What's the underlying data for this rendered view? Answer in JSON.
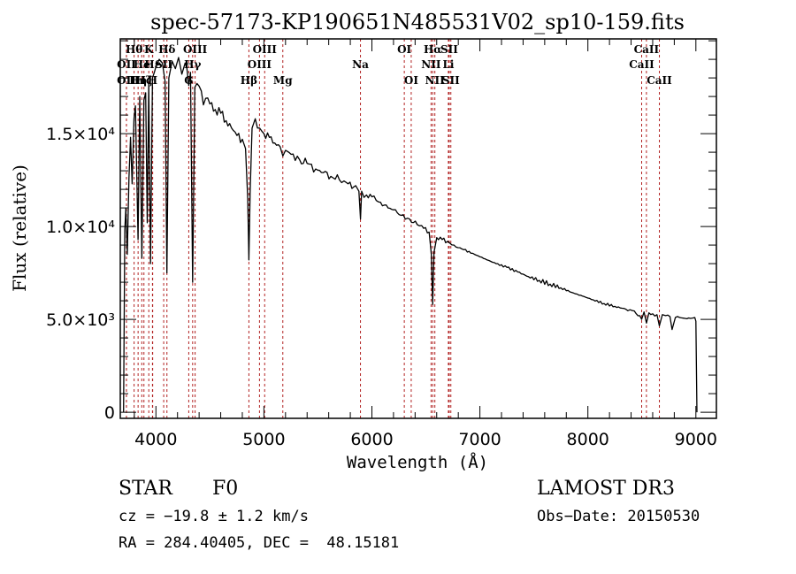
{
  "chart_data": {
    "type": "line",
    "title": "spec-57173-KP190651N485531V02_sp10-159.fits",
    "xlabel": "Wavelength (Å)",
    "ylabel": "Flux (relative)",
    "xlim": [
      3670,
      9190
    ],
    "ylim": [
      -330,
      20100
    ],
    "x_ticks": [
      {
        "value": 4000,
        "label": "4000"
      },
      {
        "value": 5000,
        "label": "5000"
      },
      {
        "value": 6000,
        "label": "6000"
      },
      {
        "value": 7000,
        "label": "7000"
      },
      {
        "value": 8000,
        "label": "8000"
      },
      {
        "value": 9000,
        "label": "9000"
      }
    ],
    "x_minor_step": 200,
    "y_ticks": [
      {
        "value": 0,
        "label": "0"
      },
      {
        "value": 5000,
        "label": "5.0×10³"
      },
      {
        "value": 10000,
        "label": "1.0×10⁴"
      },
      {
        "value": 15000,
        "label": "1.5×10⁴"
      }
    ],
    "y_minor_step": 1000,
    "grid": false,
    "series": [
      {
        "name": "spectrum",
        "color": "#000000",
        "x": [
          3700,
          3712,
          3722,
          3735,
          3750,
          3765,
          3780,
          3797,
          3810,
          3835,
          3850,
          3870,
          3889,
          3905,
          3920,
          3934,
          3950,
          3968,
          3985,
          4000,
          4030,
          4060,
          4085,
          4102,
          4120,
          4150,
          4180,
          4210,
          4240,
          4270,
          4304,
          4320,
          4340,
          4360,
          4380,
          4420,
          4460,
          4500,
          4550,
          4600,
          4650,
          4700,
          4750,
          4800,
          4830,
          4850,
          4861,
          4872,
          4890,
          4920,
          4960,
          5000,
          5050,
          5100,
          5150,
          5175,
          5200,
          5270,
          5330,
          5400,
          5480,
          5550,
          5620,
          5700,
          5780,
          5850,
          5880,
          5894,
          5905,
          5950,
          6000,
          6080,
          6150,
          6200,
          6270,
          6350,
          6420,
          6480,
          6530,
          6550,
          6563,
          6575,
          6600,
          6650,
          6700,
          6760,
          6850,
          6950,
          7050,
          7150,
          7250,
          7350,
          7450,
          7550,
          7650,
          7750,
          7850,
          7950,
          8050,
          8150,
          8250,
          8350,
          8430,
          8498,
          8520,
          8542,
          8565,
          8600,
          8640,
          8662,
          8690,
          8720,
          8760,
          8780,
          8810,
          8850,
          8900,
          8950,
          8990,
          9000,
          9010
        ],
        "values": [
          0,
          9800,
          11000,
          8500,
          12600,
          14800,
          12300,
          15800,
          16500,
          9300,
          17000,
          8300,
          16800,
          17200,
          10200,
          17700,
          8000,
          18000,
          18300,
          18600,
          19000,
          18800,
          17800,
          7500,
          18000,
          18900,
          18500,
          19100,
          18200,
          18800,
          17600,
          18300,
          7000,
          17500,
          17700,
          17300,
          16900,
          16600,
          16300,
          16100,
          15700,
          15300,
          14900,
          14700,
          14200,
          11500,
          8200,
          11800,
          15300,
          15800,
          15300,
          15000,
          14800,
          14500,
          14300,
          13800,
          14100,
          13900,
          13600,
          13400,
          13100,
          12900,
          12700,
          12500,
          12300,
          12200,
          11900,
          10400,
          11900,
          11700,
          11600,
          11300,
          11000,
          10900,
          10600,
          10400,
          10100,
          9900,
          9700,
          8500,
          5800,
          8600,
          9400,
          9300,
          9200,
          9000,
          8750,
          8500,
          8250,
          8000,
          7800,
          7550,
          7300,
          7100,
          6900,
          6700,
          6450,
          6250,
          6050,
          5850,
          5700,
          5550,
          5450,
          5000,
          5400,
          4800,
          5350,
          5300,
          5250,
          4650,
          5250,
          5200,
          5150,
          4450,
          5100,
          5100,
          5050,
          5050,
          5100,
          4900,
          0
        ]
      }
    ],
    "line_markers": {
      "color": "#b22222",
      "lines": [
        {
          "wavelength": 3727,
          "label": "OII",
          "row": 2
        },
        {
          "wavelength": 3727,
          "label": "OII",
          "row": 1
        },
        {
          "wavelength": 3798,
          "label": "Hθ",
          "row": 0
        },
        {
          "wavelength": 3835,
          "label": "Hη",
          "row": 2
        },
        {
          "wavelength": 3869,
          "label": "He",
          "row": 1
        },
        {
          "wavelength": 3889,
          "label": "Hζ",
          "row": 2
        },
        {
          "wavelength": 3934,
          "label": "K",
          "row": 0
        },
        {
          "wavelength": 3968,
          "label": "H",
          "row": 2
        },
        {
          "wavelength": 3970,
          "label": "Hε",
          "row": 1
        },
        {
          "wavelength": 4072,
          "label": "SII",
          "row": 1
        },
        {
          "wavelength": 4102,
          "label": "Hδ",
          "row": 0
        },
        {
          "wavelength": 4304,
          "label": "G",
          "row": 2
        },
        {
          "wavelength": 4340,
          "label": "Hγ",
          "row": 1
        },
        {
          "wavelength": 4363,
          "label": "OIII",
          "row": 0
        },
        {
          "wavelength": 4861,
          "label": "Hβ",
          "row": 2
        },
        {
          "wavelength": 4959,
          "label": "OIII",
          "row": 1
        },
        {
          "wavelength": 5007,
          "label": "OIII",
          "row": 0
        },
        {
          "wavelength": 5175,
          "label": "Mg",
          "row": 2
        },
        {
          "wavelength": 5894,
          "label": "Na",
          "row": 1
        },
        {
          "wavelength": 6300,
          "label": "OI",
          "row": 0
        },
        {
          "wavelength": 6364,
          "label": "OI",
          "row": 2
        },
        {
          "wavelength": 6548,
          "label": "NII",
          "row": 1
        },
        {
          "wavelength": 6563,
          "label": "Hα",
          "row": 0
        },
        {
          "wavelength": 6583,
          "label": "NII",
          "row": 2
        },
        {
          "wavelength": 6708,
          "label": "Li",
          "row": 1
        },
        {
          "wavelength": 6716,
          "label": "SII",
          "row": 0
        },
        {
          "wavelength": 6731,
          "label": "SII",
          "row": 2
        },
        {
          "wavelength": 8498,
          "label": "CaII",
          "row": 1
        },
        {
          "wavelength": 8542,
          "label": "CaII",
          "row": 0
        },
        {
          "wavelength": 8662,
          "label": "CaII",
          "row": 2
        }
      ]
    }
  },
  "info": {
    "object_class": "STAR",
    "subclass": "F0",
    "redshift": "cz = −19.8 ± 1.2 km/s",
    "coords": "RA = 284.40405, DEC =  48.15181",
    "survey": "LAMOST DR3",
    "obs_date": "Obs−Date: 20150530"
  }
}
